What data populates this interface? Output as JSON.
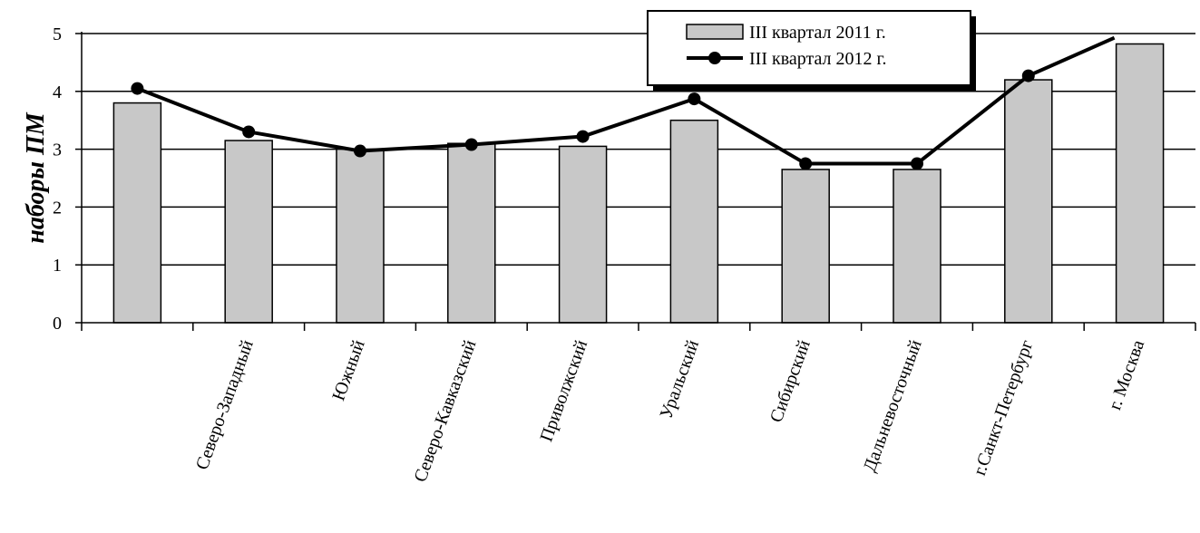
{
  "chart_data": {
    "type": "bar",
    "categories": [
      "",
      "Северо-Западный",
      "Южный",
      "Северо-Кавказский",
      "Приволжский",
      "Уральский",
      "Сибирский",
      "Дальневосточный",
      "г.Санкт-Петербург",
      "г. Москва"
    ],
    "series": [
      {
        "name": "III квартал 2011 г.",
        "type": "bar",
        "color": "#c8c8c8",
        "values": [
          3.8,
          3.15,
          3.0,
          3.1,
          3.05,
          3.5,
          2.65,
          2.65,
          4.2,
          4.82
        ]
      },
      {
        "name": "III квартал 2012 г.",
        "type": "line",
        "color": "#000000",
        "values": [
          4.05,
          3.3,
          2.97,
          3.08,
          3.22,
          3.87,
          2.75,
          2.75,
          4.27,
          5.12
        ]
      }
    ],
    "ylabel": "наборы ПМ",
    "xlabel": "",
    "ylim": [
      0,
      5
    ],
    "yticks": [
      "0",
      "1",
      "2",
      "3",
      "4",
      "5"
    ],
    "grid": true,
    "legend_position": "top-right"
  }
}
